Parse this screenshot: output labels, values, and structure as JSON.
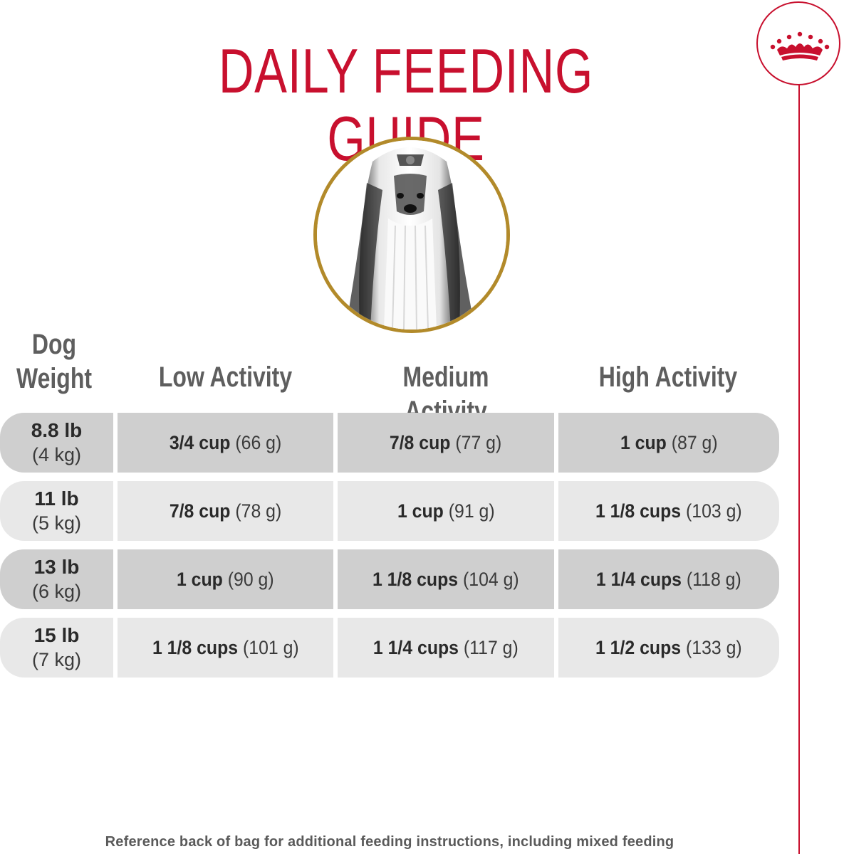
{
  "title": "DAILY FEEDING GUIDE",
  "brand": {
    "logo_icon": "crown-icon",
    "accent": "#c8102e",
    "gold": "#b28a2a"
  },
  "headers": {
    "weight_line1": "Dog",
    "weight_line2": "Weight",
    "low": "Low Activity",
    "medium": "Medium Activity",
    "high": "High Activity"
  },
  "rows": [
    {
      "lb": "8.8 lb",
      "kg": "(4 kg)",
      "low": {
        "amount": "3/4 cup",
        "grams": "(66 g)"
      },
      "medium": {
        "amount": "7/8 cup",
        "grams": "(77 g)"
      },
      "high": {
        "amount": "1 cup",
        "grams": "(87 g)"
      }
    },
    {
      "lb": "11 lb",
      "kg": "(5 kg)",
      "low": {
        "amount": "7/8 cup",
        "grams": "(78 g)"
      },
      "medium": {
        "amount": "1 cup",
        "grams": "(91 g)"
      },
      "high": {
        "amount": "1 1/8 cups",
        "grams": "(103 g)"
      }
    },
    {
      "lb": "13 lb",
      "kg": "(6 kg)",
      "low": {
        "amount": "1 cup",
        "grams": "(90 g)"
      },
      "medium": {
        "amount": "1 1/8 cups",
        "grams": "(104 g)"
      },
      "high": {
        "amount": "1 1/4 cups",
        "grams": "(118 g)"
      }
    },
    {
      "lb": "15 lb",
      "kg": "(7 kg)",
      "low": {
        "amount": "1 1/8 cups",
        "grams": "(101 g)"
      },
      "medium": {
        "amount": "1 1/4 cups",
        "grams": "(117 g)"
      },
      "high": {
        "amount": "1 1/2 cups",
        "grams": "(133 g)"
      }
    }
  ],
  "footer": "Reference back of bag for additional feeding instructions, including mixed feeding"
}
